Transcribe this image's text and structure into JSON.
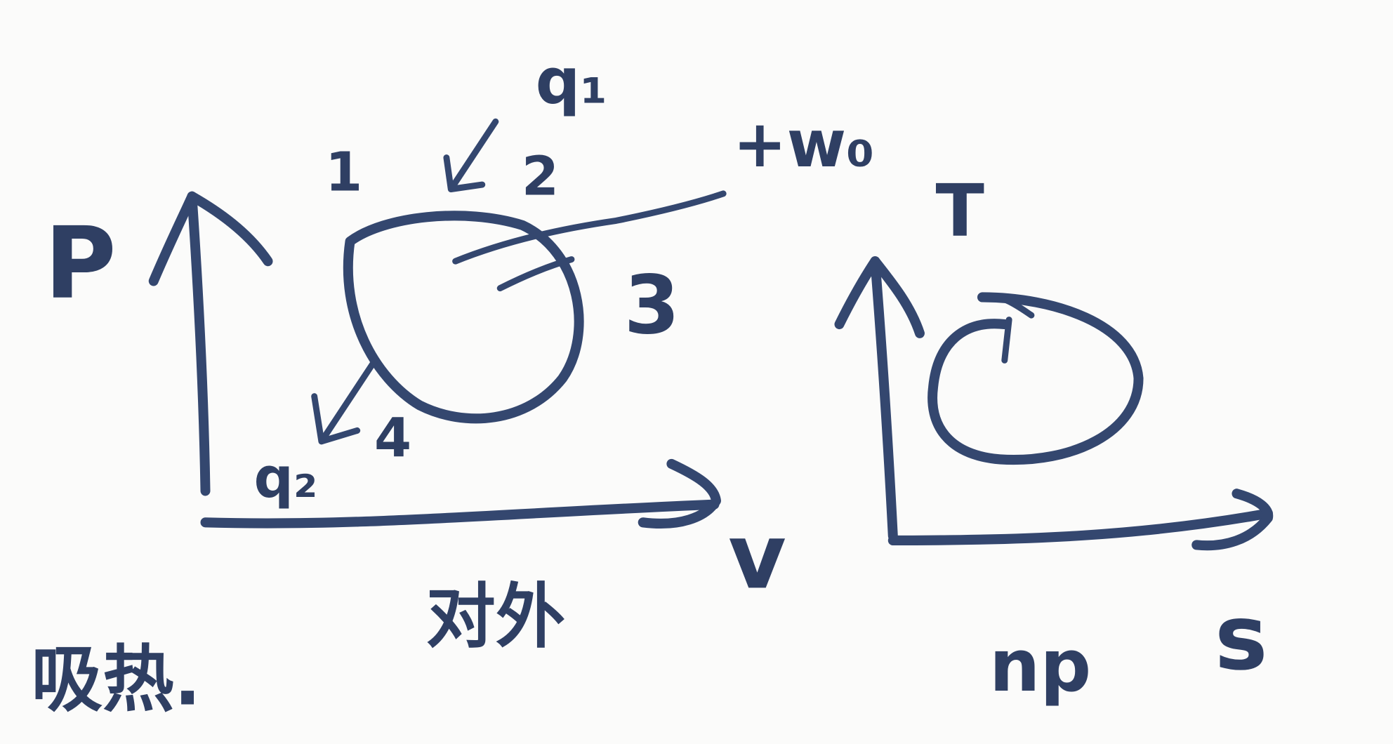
{
  "pv_diagram": {
    "axis_y": "P",
    "axis_x": "v",
    "points": [
      "1",
      "2",
      "3",
      "4"
    ],
    "heat_in": "q₁",
    "heat_out": "q₂",
    "work": "+w₀",
    "note": "对外"
  },
  "ts_diagram": {
    "axis_y": "T",
    "axis_x": "s",
    "note": "np"
  },
  "side_note": "吸热."
}
